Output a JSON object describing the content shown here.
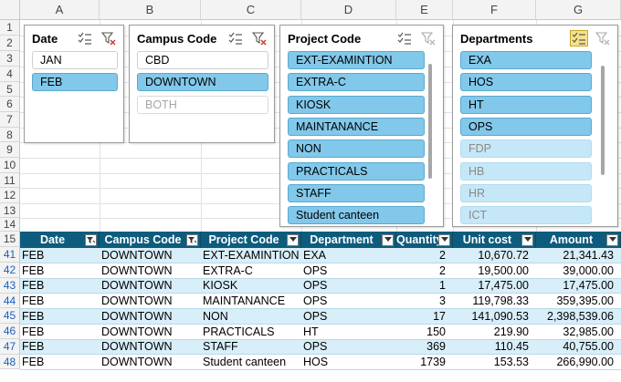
{
  "columns": [
    "A",
    "B",
    "C",
    "D",
    "E",
    "F",
    "G"
  ],
  "rows": [
    "1",
    "2",
    "3",
    "4",
    "5",
    "6",
    "7",
    "8",
    "9",
    "10",
    "11",
    "12",
    "13",
    "14",
    "15",
    "41",
    "42",
    "43",
    "44",
    "45",
    "46",
    "47",
    "48"
  ],
  "slicers": {
    "date": {
      "title": "Date",
      "items": [
        {
          "label": "JAN",
          "state": "unsel"
        },
        {
          "label": "FEB",
          "state": "sel"
        }
      ]
    },
    "campus": {
      "title": "Campus Code",
      "items": [
        {
          "label": "CBD",
          "state": "unsel"
        },
        {
          "label": "DOWNTOWN",
          "state": "sel"
        },
        {
          "label": "BOTH",
          "state": "nodata"
        }
      ]
    },
    "project": {
      "title": "Project Code",
      "items": [
        {
          "label": "EXT-EXAMINTION",
          "state": "sel"
        },
        {
          "label": "EXTRA-C",
          "state": "sel"
        },
        {
          "label": "KIOSK",
          "state": "sel"
        },
        {
          "label": "MAINTANANCE",
          "state": "sel"
        },
        {
          "label": "NON",
          "state": "sel"
        },
        {
          "label": "PRACTICALS",
          "state": "sel"
        },
        {
          "label": "STAFF",
          "state": "sel"
        },
        {
          "label": "Student canteen",
          "state": "sel"
        }
      ]
    },
    "departments": {
      "title": "Departments",
      "items": [
        {
          "label": "EXA",
          "state": "sel"
        },
        {
          "label": "HOS",
          "state": "sel"
        },
        {
          "label": "HT",
          "state": "sel"
        },
        {
          "label": "OPS",
          "state": "sel"
        },
        {
          "label": "FDP",
          "state": "unsel-dim"
        },
        {
          "label": "HB",
          "state": "unsel-dim"
        },
        {
          "label": "HR",
          "state": "unsel-dim"
        },
        {
          "label": "ICT",
          "state": "unsel-dim"
        }
      ]
    }
  },
  "table": {
    "headers": [
      "Date",
      "Campus Code",
      "Project Code",
      "Department",
      "Quantity",
      "Unit cost",
      "Amount"
    ],
    "rows": [
      [
        "FEB",
        "DOWNTOWN",
        "EXT-EXAMINTION",
        "EXA",
        "2",
        "10,670.72",
        "21,341.43"
      ],
      [
        "FEB",
        "DOWNTOWN",
        "EXTRA-C",
        "OPS",
        "2",
        "19,500.00",
        "39,000.00"
      ],
      [
        "FEB",
        "DOWNTOWN",
        "KIOSK",
        "OPS",
        "1",
        "17,475.00",
        "17,475.00"
      ],
      [
        "FEB",
        "DOWNTOWN",
        "MAINTANANCE",
        "OPS",
        "3",
        "119,798.33",
        "359,395.00"
      ],
      [
        "FEB",
        "DOWNTOWN",
        "NON",
        "OPS",
        "17",
        "141,090.53",
        "2,398,539.06"
      ],
      [
        "FEB",
        "DOWNTOWN",
        "PRACTICALS",
        "HT",
        "150",
        "219.90",
        "32,985.00"
      ],
      [
        "FEB",
        "DOWNTOWN",
        "STAFF",
        "OPS",
        "369",
        "110.45",
        "40,755.00"
      ],
      [
        "FEB",
        "DOWNTOWN",
        "Student canteen",
        "HOS",
        "1739",
        "153.53",
        "266,990.00"
      ]
    ]
  },
  "colors": {
    "header_bg": "#0e5c7d",
    "slicer_selected": "#82c8ea",
    "band": "#d8eef9",
    "active_multiselect": "#f7e08a"
  }
}
